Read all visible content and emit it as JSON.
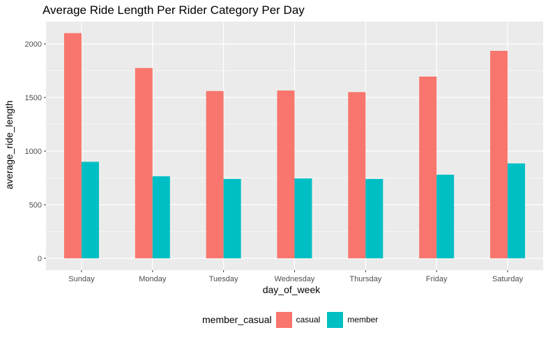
{
  "chart_data": {
    "type": "bar",
    "title": "Average Ride Length Per Rider Category Per Day",
    "xlabel": "day_of_week",
    "ylabel": "average_ride_length",
    "categories": [
      "Sunday",
      "Monday",
      "Tuesday",
      "Wednesday",
      "Thursday",
      "Friday",
      "Saturday"
    ],
    "series": [
      {
        "name": "casual",
        "color": "#F8766D",
        "values": [
          2100,
          1775,
          1560,
          1565,
          1550,
          1695,
          1935
        ]
      },
      {
        "name": "member",
        "color": "#00BFC4",
        "values": [
          900,
          765,
          740,
          745,
          740,
          780,
          885
        ]
      }
    ],
    "ylim": [
      0,
      2200
    ],
    "yticks": [
      0,
      500,
      1000,
      1500,
      2000
    ],
    "legend": {
      "title": "member_casual",
      "position": "bottom"
    },
    "grid": true,
    "panel_background": "#EBEBEB"
  }
}
